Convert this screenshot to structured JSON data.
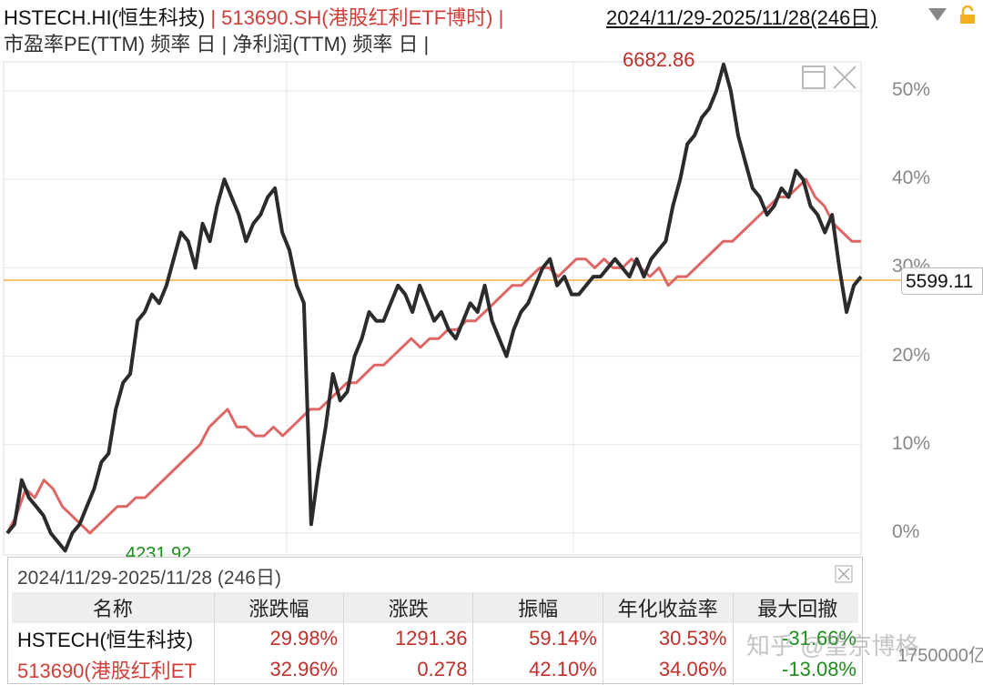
{
  "header": {
    "index_symbol": "HSTECH.HI(恒生科技)",
    "separator": " | ",
    "etf_symbol": "513690.SH(港股红利ETF博时)",
    "trailing_sep": " |",
    "date_range": "2024/11/29-2025/11/28(246日)",
    "metrics_line": "市盈率PE(TTM) 频率 日 | 净利润(TTM) 频率 日 |"
  },
  "chart": {
    "y_ticks": [
      "50%",
      "40%",
      "30%",
      "20%",
      "10%",
      "0%"
    ],
    "high_label": "6682.86",
    "low_label": "4231.92",
    "current_value": "5599.11",
    "colors": {
      "index": "#2b2b2b",
      "etf": "#e06666",
      "ref_line": "#f0a020",
      "grid": "#e6e6e6"
    }
  },
  "chart_data": {
    "type": "line",
    "x_range": [
      "2024/11/29",
      "2025/11/28"
    ],
    "ylim": [
      -2,
      54
    ],
    "y_unit": "%",
    "series": [
      {
        "name": "HSTECH.HI(恒生科技)",
        "values": [
          0,
          1,
          6,
          4,
          3,
          2,
          0,
          -1,
          -2,
          0,
          1,
          3,
          5,
          8,
          9,
          14,
          17,
          18,
          24,
          25,
          27,
          26,
          28,
          31,
          34,
          33,
          30,
          35,
          33,
          37,
          40,
          38,
          36,
          33,
          35,
          36,
          38,
          39,
          34,
          32,
          28,
          26,
          1,
          7,
          12,
          18,
          15,
          16,
          20,
          22,
          25,
          24,
          24,
          26,
          28,
          27,
          25,
          28,
          26,
          24,
          25,
          23,
          22,
          24,
          26,
          25,
          28,
          24,
          22,
          20,
          23,
          25,
          26,
          28,
          30,
          31,
          28,
          29,
          27,
          27,
          28,
          29,
          29,
          30,
          31,
          30,
          29,
          31,
          29,
          31,
          32,
          33,
          37,
          40,
          44,
          45,
          47,
          48,
          50,
          53,
          50,
          45,
          42,
          39,
          38,
          36,
          37,
          39,
          38,
          41,
          40,
          37,
          36,
          34,
          36,
          30,
          25,
          28,
          29
        ]
      },
      {
        "name": "513690.SH(港股红利ETF博时)",
        "values": [
          0,
          2,
          5,
          4,
          6,
          5,
          3,
          2,
          1,
          0,
          1,
          2,
          3,
          3,
          4,
          4,
          5,
          6,
          7,
          8,
          9,
          10,
          12,
          13,
          14,
          12,
          12,
          11,
          11,
          12,
          11,
          12,
          13,
          14,
          14,
          15,
          16,
          17,
          17,
          18,
          19,
          19,
          20,
          21,
          22,
          21,
          22,
          22,
          23,
          23,
          24,
          24,
          25,
          26,
          27,
          28,
          28,
          29,
          30,
          30,
          29,
          30,
          31,
          31,
          30,
          31,
          30,
          30,
          31,
          30,
          29,
          30,
          28,
          29,
          29,
          30,
          31,
          32,
          33,
          33,
          34,
          35,
          36,
          37,
          38,
          38,
          39,
          40,
          38,
          37,
          35,
          34,
          33,
          33
        ]
      }
    ],
    "reference_value": 5599.11
  },
  "panel": {
    "title": "2024/11/29-2025/11/28 (246日)",
    "columns": [
      "名称",
      "涨跌幅",
      "涨跌",
      "振幅",
      "年化收益率",
      "最大回撤"
    ],
    "rows": [
      {
        "name": "HSTECH(恒生科技)",
        "pct": "29.98%",
        "chg": "1291.36",
        "amp": "59.14%",
        "ann": "30.53%",
        "mdd": "-31.66%"
      },
      {
        "name": "513690(港股红利ET",
        "pct": "32.96%",
        "chg": "0.278",
        "amp": "42.10%",
        "ann": "34.06%",
        "mdd": "-13.08%"
      }
    ]
  },
  "watermark": "知乎 @望京博格",
  "volume_label": "1750000亿"
}
